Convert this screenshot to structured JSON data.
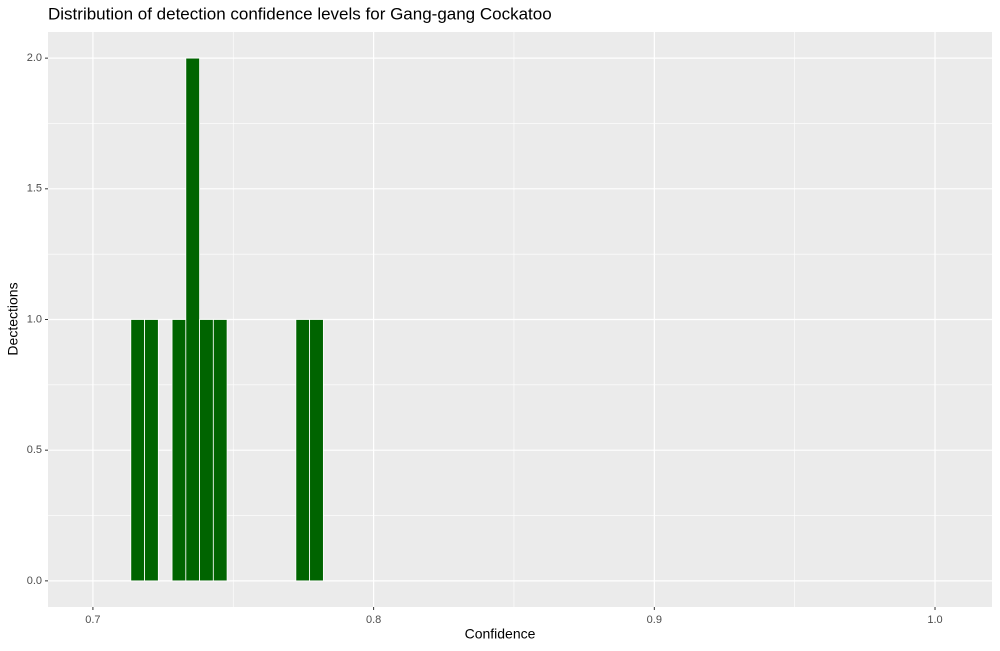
{
  "chart_data": {
    "type": "histogram",
    "title": "Distribution of detection confidence levels for Gang-gang Cockatoo",
    "x_label": "Confidence",
    "y_label": "Dectections",
    "bins": [
      0.7135,
      0.7184,
      0.7233,
      0.7282,
      0.7331,
      0.738,
      0.7429,
      0.7478,
      0.7527,
      0.7576,
      0.7625,
      0.7674,
      0.7723,
      0.7772,
      0.7821
    ],
    "values": [
      1,
      1,
      0,
      1,
      2,
      1,
      1,
      0,
      0,
      0,
      0,
      0,
      1,
      1
    ],
    "color": "#006400",
    "xlim": [
      0.684,
      1.0203
    ],
    "xticks": [
      {
        "value": 0.7,
        "label": "0.7"
      },
      {
        "value": 0.8,
        "label": "0.8"
      },
      {
        "value": 0.9,
        "label": "0.9"
      },
      {
        "value": 1.0,
        "label": "1.0"
      }
    ],
    "ylim": [
      -0.1,
      2.1
    ],
    "yticks": [
      {
        "value": 0,
        "label": "0.0"
      },
      {
        "value": 0.5,
        "label": "0.5"
      },
      {
        "value": 1.0,
        "label": "1.0"
      },
      {
        "value": 1.5,
        "label": "1.5"
      },
      {
        "value": 2.0,
        "label": "2.0"
      }
    ],
    "grid": true
  }
}
